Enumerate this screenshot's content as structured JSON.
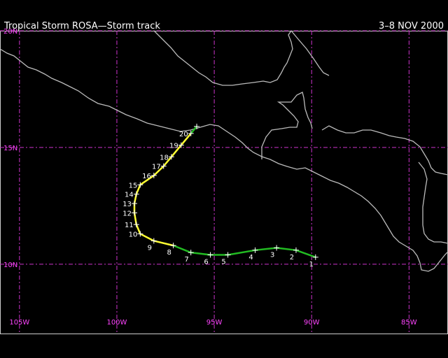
{
  "header": {
    "title": "Tropical Storm ROSA—Storm track",
    "dates": "3–8 NOV 2000"
  },
  "map": {
    "lon_range": [
      -106,
      -83
    ],
    "lat_range": [
      7,
      20
    ],
    "lat_gridlines": [
      {
        "value": 20,
        "label": "20N"
      },
      {
        "value": 15,
        "label": "15N"
      },
      {
        "value": 10,
        "label": "10N"
      }
    ],
    "lon_gridlines": [
      {
        "value": -105,
        "label": "105W"
      },
      {
        "value": -100,
        "label": "100W"
      },
      {
        "value": -95,
        "label": "95W"
      },
      {
        "value": -90,
        "label": "90W"
      },
      {
        "value": -85,
        "label": "85W"
      }
    ],
    "colors": {
      "background": "#000000",
      "grid": "#cc33cc",
      "coast": "#bbbbbb",
      "depression": "#22bb22",
      "storm": "#ffff33",
      "marker": "#ffffff"
    }
  },
  "track": {
    "legend_note": "",
    "points": [
      {
        "label": "1",
        "lon": -89.8,
        "lat": 10.3,
        "stage": "depression"
      },
      {
        "label": "2",
        "lon": -90.8,
        "lat": 10.6,
        "stage": "depression"
      },
      {
        "label": "3",
        "lon": -91.8,
        "lat": 10.7,
        "stage": "depression"
      },
      {
        "label": "4",
        "lon": -92.9,
        "lat": 10.6,
        "stage": "depression"
      },
      {
        "label": "5",
        "lon": -94.3,
        "lat": 10.4,
        "stage": "depression"
      },
      {
        "label": "6",
        "lon": -95.2,
        "lat": 10.4,
        "stage": "depression"
      },
      {
        "label": "7",
        "lon": -96.2,
        "lat": 10.5,
        "stage": "depression"
      },
      {
        "label": "8",
        "lon": -97.1,
        "lat": 10.8,
        "stage": "storm"
      },
      {
        "label": "9",
        "lon": -98.1,
        "lat": 11.0,
        "stage": "storm"
      },
      {
        "label": "10",
        "lon": -98.8,
        "lat": 11.3,
        "stage": "storm"
      },
      {
        "label": "11",
        "lon": -99.0,
        "lat": 11.7,
        "stage": "storm"
      },
      {
        "label": "12",
        "lon": -99.1,
        "lat": 12.2,
        "stage": "storm"
      },
      {
        "label": "13",
        "lon": -99.1,
        "lat": 12.6,
        "stage": "storm"
      },
      {
        "label": "14",
        "lon": -99.0,
        "lat": 13.0,
        "stage": "storm"
      },
      {
        "label": "15",
        "lon": -98.8,
        "lat": 13.4,
        "stage": "storm"
      },
      {
        "label": "16",
        "lon": -98.1,
        "lat": 13.8,
        "stage": "storm"
      },
      {
        "label": "17",
        "lon": -97.6,
        "lat": 14.2,
        "stage": "storm"
      },
      {
        "label": "18",
        "lon": -97.2,
        "lat": 14.6,
        "stage": "storm"
      },
      {
        "label": "19",
        "lon": -96.7,
        "lat": 15.1,
        "stage": "storm"
      },
      {
        "label": "20",
        "lon": -96.2,
        "lat": 15.6,
        "stage": "depression"
      },
      {
        "label": "",
        "lon": -95.9,
        "lat": 15.9,
        "stage": "depression"
      }
    ]
  }
}
